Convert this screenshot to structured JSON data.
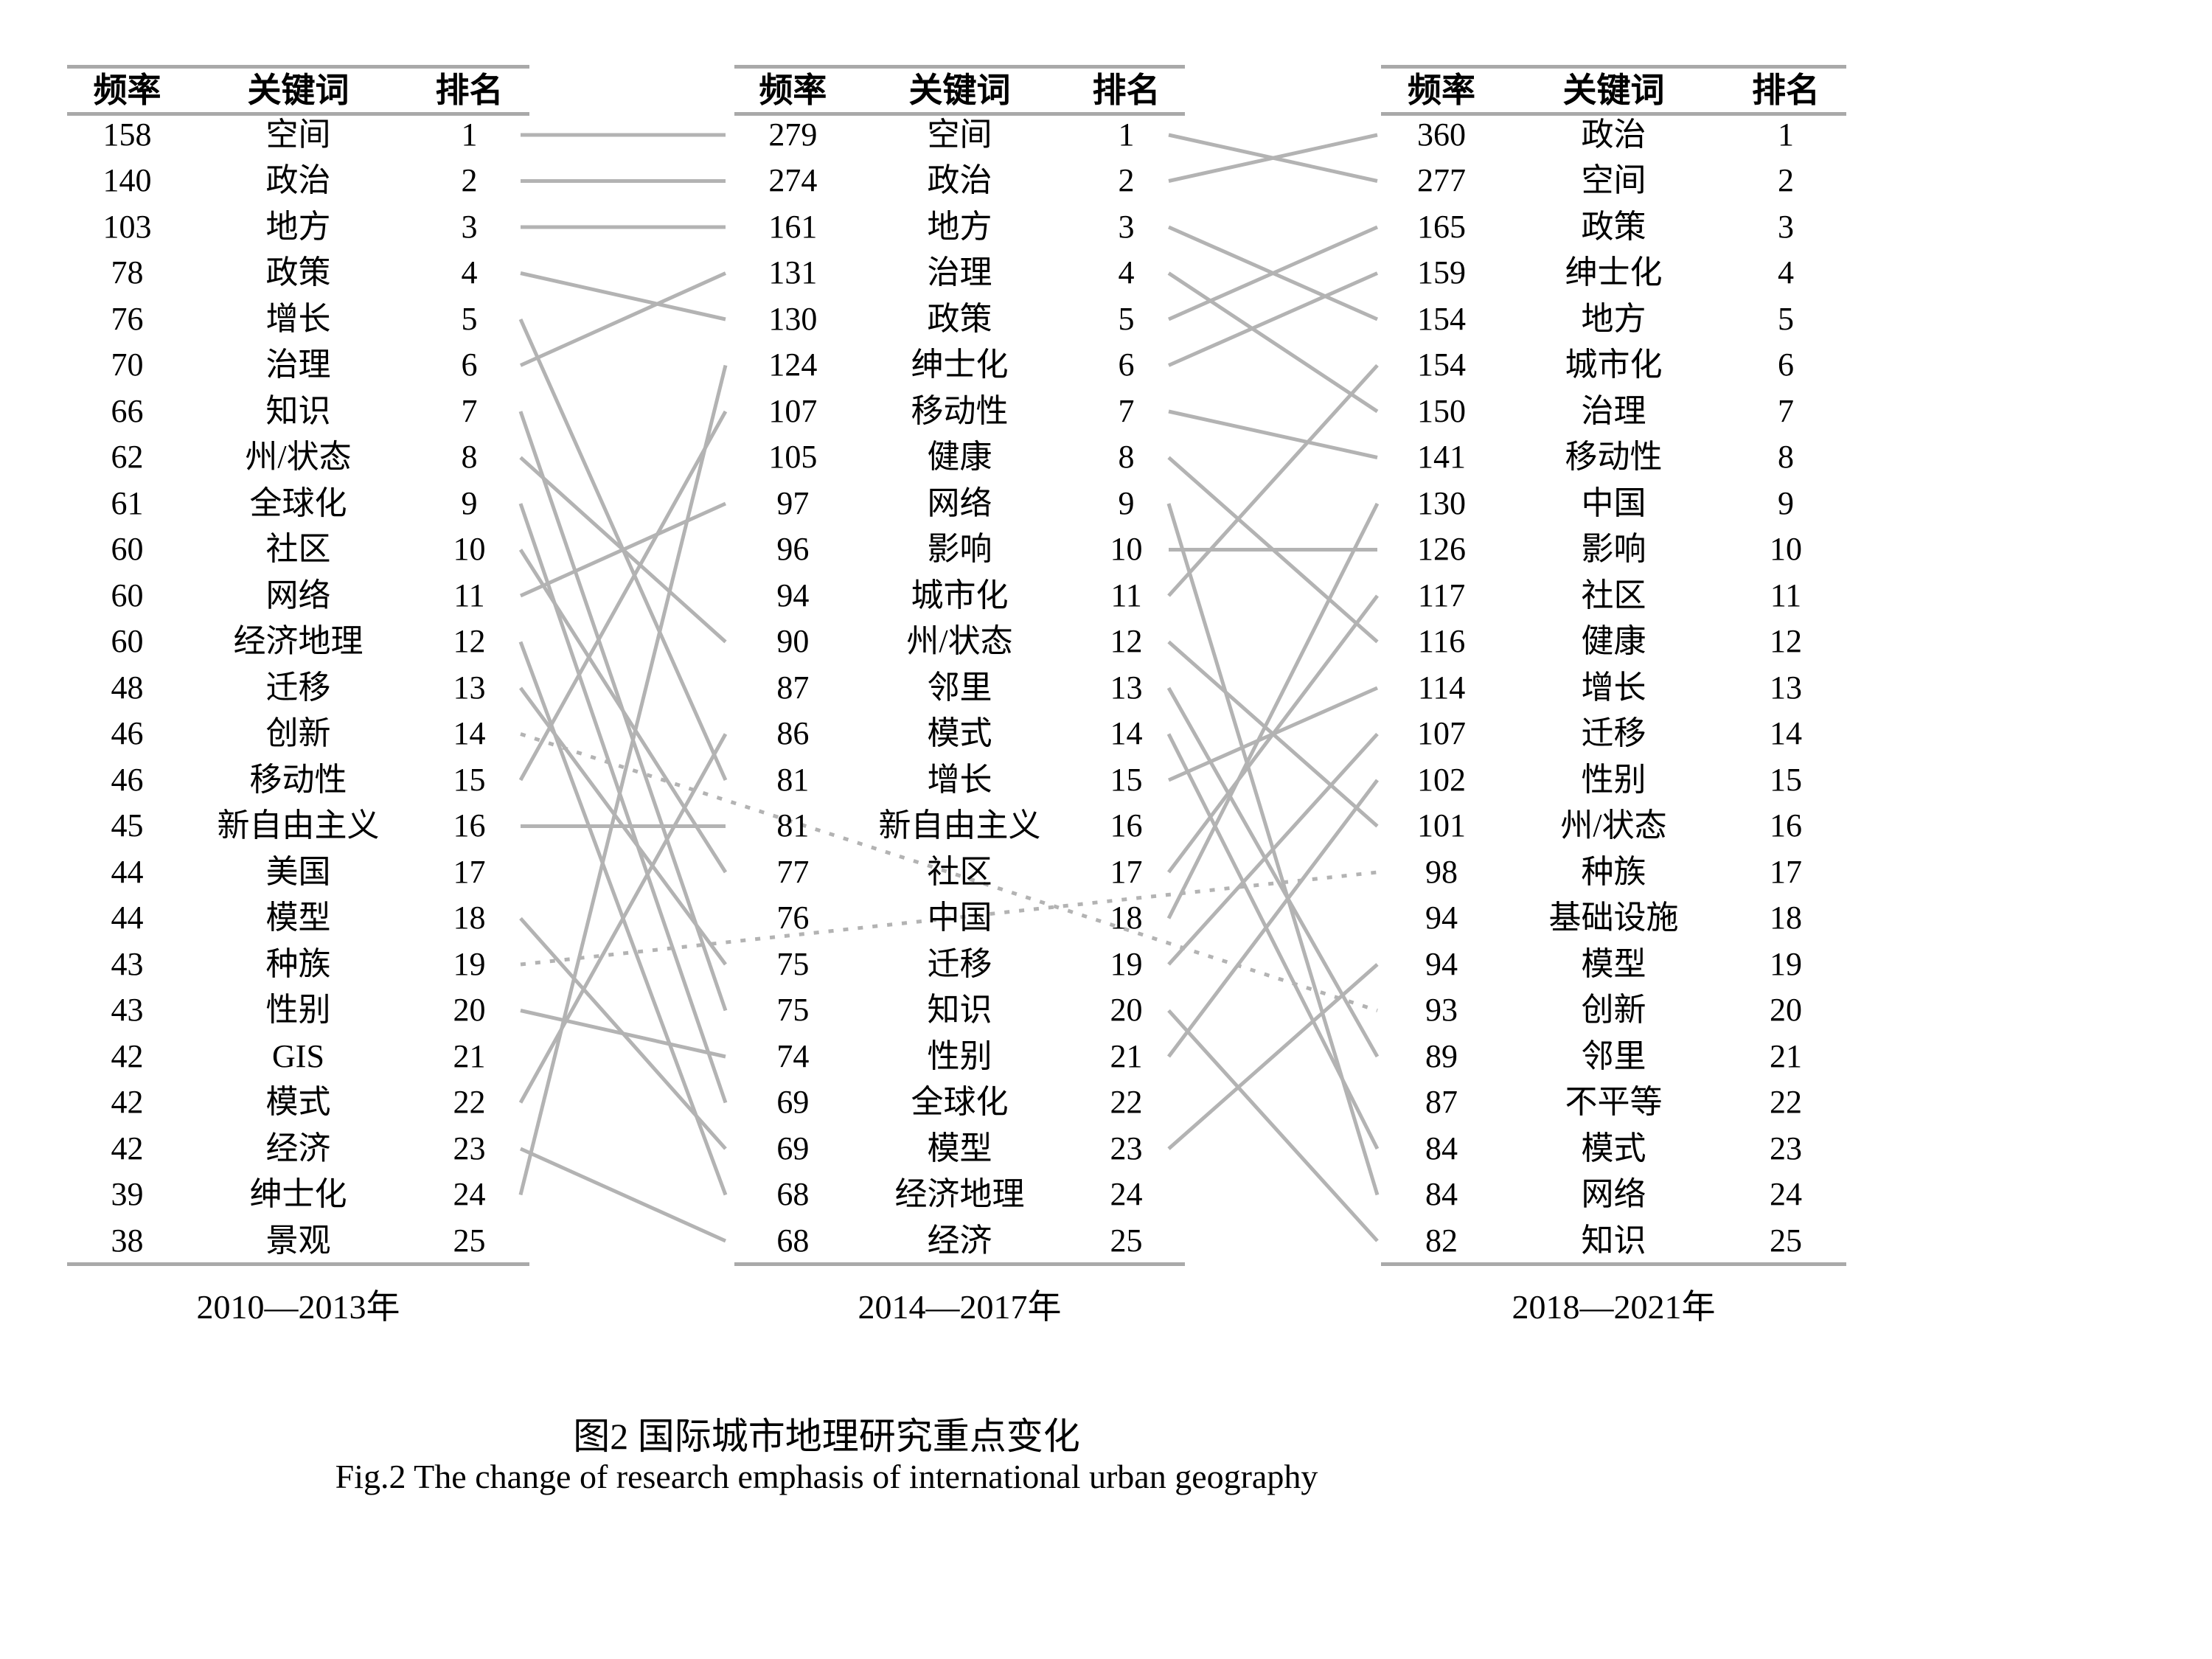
{
  "figure": {
    "caption_zh": "图2 国际城市地理研究重点变化",
    "caption_en": "Fig.2 The change of research emphasis of international urban geography"
  },
  "columns": [
    "频率",
    "关键词",
    "排名"
  ],
  "tables": [
    {
      "period": "2010—2013年",
      "rows": [
        [
          "158",
          "空间",
          "1"
        ],
        [
          "140",
          "政治",
          "2"
        ],
        [
          "103",
          "地方",
          "3"
        ],
        [
          "78",
          "政策",
          "4"
        ],
        [
          "76",
          "增长",
          "5"
        ],
        [
          "70",
          "治理",
          "6"
        ],
        [
          "66",
          "知识",
          "7"
        ],
        [
          "62",
          "州/状态",
          "8"
        ],
        [
          "61",
          "全球化",
          "9"
        ],
        [
          "60",
          "社区",
          "10"
        ],
        [
          "60",
          "网络",
          "11"
        ],
        [
          "60",
          "经济地理",
          "12"
        ],
        [
          "48",
          "迁移",
          "13"
        ],
        [
          "46",
          "创新",
          "14"
        ],
        [
          "46",
          "移动性",
          "15"
        ],
        [
          "45",
          "新自由主义",
          "16"
        ],
        [
          "44",
          "美国",
          "17"
        ],
        [
          "44",
          "模型",
          "18"
        ],
        [
          "43",
          "种族",
          "19"
        ],
        [
          "43",
          "性别",
          "20"
        ],
        [
          "42",
          "GIS",
          "21"
        ],
        [
          "42",
          "模式",
          "22"
        ],
        [
          "42",
          "经济",
          "23"
        ],
        [
          "39",
          "绅士化",
          "24"
        ],
        [
          "38",
          "景观",
          "25"
        ]
      ]
    },
    {
      "period": "2014—2017年",
      "rows": [
        [
          "279",
          "空间",
          "1"
        ],
        [
          "274",
          "政治",
          "2"
        ],
        [
          "161",
          "地方",
          "3"
        ],
        [
          "131",
          "治理",
          "4"
        ],
        [
          "130",
          "政策",
          "5"
        ],
        [
          "124",
          "绅士化",
          "6"
        ],
        [
          "107",
          "移动性",
          "7"
        ],
        [
          "105",
          "健康",
          "8"
        ],
        [
          "97",
          "网络",
          "9"
        ],
        [
          "96",
          "影响",
          "10"
        ],
        [
          "94",
          "城市化",
          "11"
        ],
        [
          "90",
          "州/状态",
          "12"
        ],
        [
          "87",
          "邻里",
          "13"
        ],
        [
          "86",
          "模式",
          "14"
        ],
        [
          "81",
          "增长",
          "15"
        ],
        [
          "81",
          "新自由主义",
          "16"
        ],
        [
          "77",
          "社区",
          "17"
        ],
        [
          "76",
          "中国",
          "18"
        ],
        [
          "75",
          "迁移",
          "19"
        ],
        [
          "75",
          "知识",
          "20"
        ],
        [
          "74",
          "性别",
          "21"
        ],
        [
          "69",
          "全球化",
          "22"
        ],
        [
          "69",
          "模型",
          "23"
        ],
        [
          "68",
          "经济地理",
          "24"
        ],
        [
          "68",
          "经济",
          "25"
        ]
      ]
    },
    {
      "period": "2018—2021年",
      "rows": [
        [
          "360",
          "政治",
          "1"
        ],
        [
          "277",
          "空间",
          "2"
        ],
        [
          "165",
          "政策",
          "3"
        ],
        [
          "159",
          "绅士化",
          "4"
        ],
        [
          "154",
          "地方",
          "5"
        ],
        [
          "154",
          "城市化",
          "6"
        ],
        [
          "150",
          "治理",
          "7"
        ],
        [
          "141",
          "移动性",
          "8"
        ],
        [
          "130",
          "中国",
          "9"
        ],
        [
          "126",
          "影响",
          "10"
        ],
        [
          "117",
          "社区",
          "11"
        ],
        [
          "116",
          "健康",
          "12"
        ],
        [
          "114",
          "增长",
          "13"
        ],
        [
          "107",
          "迁移",
          "14"
        ],
        [
          "102",
          "性别",
          "15"
        ],
        [
          "101",
          "州/状态",
          "16"
        ],
        [
          "98",
          "种族",
          "17"
        ],
        [
          "94",
          "基础设施",
          "18"
        ],
        [
          "94",
          "模型",
          "19"
        ],
        [
          "93",
          "创新",
          "20"
        ],
        [
          "89",
          "邻里",
          "21"
        ],
        [
          "87",
          "不平等",
          "22"
        ],
        [
          "84",
          "模式",
          "23"
        ],
        [
          "84",
          "网络",
          "24"
        ],
        [
          "82",
          "知识",
          "25"
        ]
      ]
    }
  ],
  "links": {
    "solid_t1_t2": [
      [
        1,
        1
      ],
      [
        2,
        2
      ],
      [
        3,
        3
      ],
      [
        4,
        5
      ],
      [
        5,
        15
      ],
      [
        6,
        4
      ],
      [
        7,
        20
      ],
      [
        8,
        12
      ],
      [
        9,
        22
      ],
      [
        10,
        17
      ],
      [
        11,
        9
      ],
      [
        12,
        24
      ],
      [
        13,
        19
      ],
      [
        15,
        7
      ],
      [
        16,
        16
      ],
      [
        18,
        23
      ],
      [
        20,
        21
      ],
      [
        22,
        14
      ],
      [
        23,
        25
      ],
      [
        24,
        6
      ]
    ],
    "solid_t2_t3": [
      [
        1,
        2
      ],
      [
        2,
        1
      ],
      [
        3,
        5
      ],
      [
        4,
        7
      ],
      [
        5,
        3
      ],
      [
        6,
        4
      ],
      [
        7,
        8
      ],
      [
        8,
        12
      ],
      [
        9,
        24
      ],
      [
        10,
        10
      ],
      [
        11,
        6
      ],
      [
        12,
        16
      ],
      [
        13,
        21
      ],
      [
        14,
        23
      ],
      [
        15,
        13
      ],
      [
        17,
        11
      ],
      [
        18,
        9
      ],
      [
        19,
        14
      ],
      [
        20,
        25
      ],
      [
        21,
        15
      ],
      [
        23,
        19
      ]
    ],
    "dotted_t1_t3": [
      [
        14,
        20
      ],
      [
        19,
        17
      ]
    ]
  },
  "colors": {
    "line": "#b3b3b3",
    "rule": "#a9a9a9",
    "text": "#000000",
    "background": "#ffffff"
  }
}
